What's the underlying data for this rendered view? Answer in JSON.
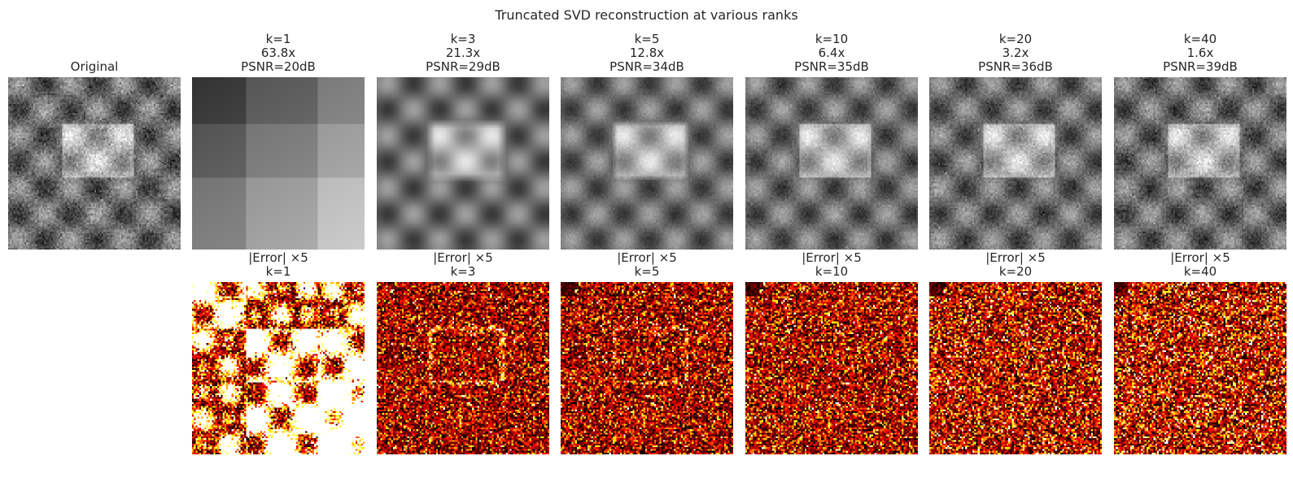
{
  "title": "Truncated SVD reconstruction at various ranks",
  "original_label": "Original",
  "error_label": "|Error| ×5",
  "chart_data": {
    "type": "heatmap",
    "title": "Truncated SVD reconstruction at various ranks",
    "original": {
      "title": "Original",
      "colormap": "gray"
    },
    "reconstructions": [
      {
        "rank": "k=1",
        "compression": "63.8x",
        "psnr": "PSNR=20dB",
        "psnr_db": 20,
        "ratio": 63.8
      },
      {
        "rank": "k=3",
        "compression": "21.3x",
        "psnr": "PSNR=29dB",
        "psnr_db": 29,
        "ratio": 21.3
      },
      {
        "rank": "k=5",
        "compression": "12.8x",
        "psnr": "PSNR=34dB",
        "psnr_db": 34,
        "ratio": 12.8
      },
      {
        "rank": "k=10",
        "compression": "6.4x",
        "psnr": "PSNR=35dB",
        "psnr_db": 35,
        "ratio": 6.4
      },
      {
        "rank": "k=20",
        "compression": "3.2x",
        "psnr": "PSNR=36dB",
        "psnr_db": 36,
        "ratio": 3.2
      },
      {
        "rank": "k=40",
        "compression": "1.6x",
        "psnr": "PSNR=39dB",
        "psnr_db": 39,
        "ratio": 1.6
      }
    ],
    "error_row": {
      "title": "|Error| ×5",
      "colormap": "hot",
      "scale": 5
    }
  }
}
